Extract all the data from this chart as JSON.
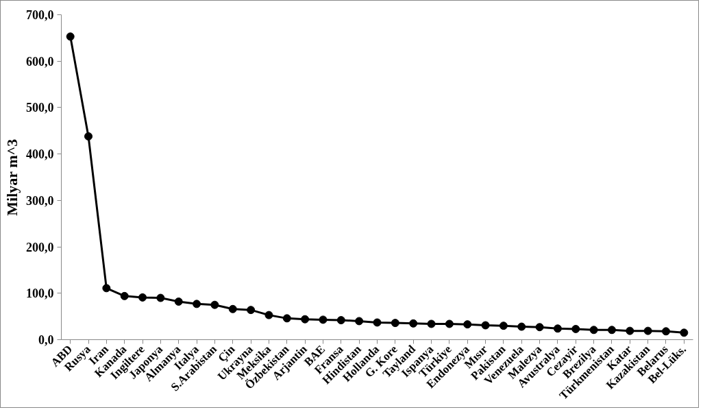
{
  "chart_data": {
    "type": "line",
    "ylabel": "Milyar m^3",
    "categories": [
      "ABD",
      "Rusya",
      "Iran",
      "Kanada",
      "Ingiltere",
      "Japonya",
      "Almanya",
      "Italya",
      "S.Arabistan",
      "Çin",
      "Ukrayna",
      "Meksika",
      "Özbekistan",
      "Arjantin",
      "BAE",
      "Fransa",
      "Hindistan",
      "Hollanda",
      "G. Kore",
      "Tayland",
      "Ispanya",
      "Türkiye",
      "Endonezya",
      "Mısır",
      "Pakistan",
      "Venezuela",
      "Malezya",
      "Avustralya",
      "Cezayir",
      "Brezilya",
      "Türkmenistan",
      "Katar",
      "Kazakistan",
      "Belarus",
      "Bel-Lüks."
    ],
    "series": [
      {
        "color": "#000000",
        "values": [
          653,
          438,
          111,
          94,
          91,
          90,
          82,
          77,
          75,
          66,
          64,
          53,
          46,
          44,
          43,
          42,
          40,
          37,
          36,
          35,
          34,
          34,
          33,
          31,
          30,
          28,
          27,
          24,
          23,
          21,
          21,
          19,
          19,
          18,
          15
        ]
      }
    ],
    "ylim": [
      0,
      700
    ],
    "yticks": [
      {
        "value": 0,
        "label": "0,0"
      },
      {
        "value": 100,
        "label": "100,0"
      },
      {
        "value": 200,
        "label": "200,0"
      },
      {
        "value": 300,
        "label": "300,0"
      },
      {
        "value": 400,
        "label": "400,0"
      },
      {
        "value": 500,
        "label": "500,0"
      },
      {
        "value": 600,
        "label": "600,0"
      },
      {
        "value": 700,
        "label": "700,0"
      }
    ],
    "grid": false,
    "marker": "circle",
    "line_style": "solid"
  }
}
